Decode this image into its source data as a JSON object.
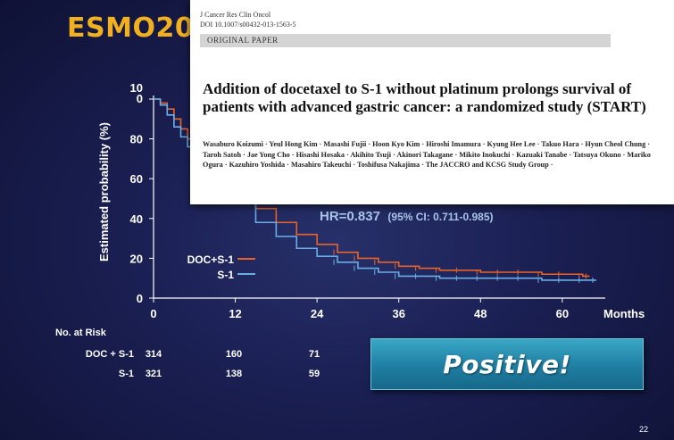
{
  "slide": {
    "title": "ESMO20",
    "page_number": "22",
    "positive_label": "Positive!"
  },
  "paper": {
    "journal": "J Cancer Res Clin Oncol",
    "doi": "DOI 10.1007/s00432-013-1563-5",
    "type": "ORIGINAL PAPER",
    "title": "Addition of docetaxel to S-1 without platinum prolongs survival of patients with advanced gastric cancer: a randomized study (START)",
    "authors": "Wasaburo Koizumi · Yeul Hong Kim · Masashi Fujii · Hoon Kyo Kim · Hiroshi Imamura · Kyung Hee Lee · Takuo Hara · Hyun Cheol Chung · Taroh Satoh · Jae Yong Cho · Hisashi Hosaka · Akihito Tsuji · Akinori Takagane · Mikito Inokuchi · Kazuaki Tanabe · Tatsuya Okuno · Mariko Ogura · Kazuhiro Yoshida · Masahiro Takeuchi · Toshifusa Nakajima · The JACCRO and KCSG Study Group ·"
  },
  "colors": {
    "doc_s1": "#e8632a",
    "s1": "#6aaee6",
    "title": "#f0b020",
    "hr": "#a9c6e8"
  },
  "chart_data": {
    "type": "line",
    "subtype": "kaplan-meier",
    "ylabel": "Estimated probability (%)",
    "xlabel": "Months",
    "y_ticks": [
      "0",
      "20",
      "40",
      "60",
      "80",
      "10\n0"
    ],
    "y_tick_values": [
      0,
      20,
      40,
      60,
      80,
      100
    ],
    "x_ticks": [
      "0",
      "12",
      "24",
      "36",
      "48",
      "60"
    ],
    "x_tick_values": [
      0,
      12,
      24,
      36,
      48,
      60
    ],
    "xlim": [
      0,
      65
    ],
    "ylim": [
      0,
      100
    ],
    "annotation": "HR=0.837",
    "annotation_ci": "(95% CI: 0.711-0.985)",
    "legend_position": "bottom-left",
    "series": [
      {
        "name": "DOC+S-1",
        "color": "#e8632a",
        "x": [
          0,
          1,
          2,
          3,
          4,
          5,
          6,
          8,
          10,
          12,
          15,
          18,
          21,
          24,
          27,
          30,
          33,
          36,
          39,
          42,
          45,
          48,
          51,
          54,
          57,
          60,
          63,
          64
        ],
        "y": [
          100,
          98,
          95,
          90,
          85,
          80,
          77,
          70,
          62,
          55,
          45,
          38,
          32,
          27,
          23,
          20,
          18,
          16,
          15,
          14,
          14,
          13,
          13,
          13,
          12,
          12,
          11,
          11
        ]
      },
      {
        "name": "S-1",
        "color": "#6aaee6",
        "x": [
          0,
          1,
          2,
          3,
          4,
          5,
          6,
          8,
          10,
          12,
          15,
          18,
          21,
          24,
          27,
          30,
          33,
          36,
          39,
          42,
          45,
          48,
          51,
          54,
          57,
          60,
          63,
          65
        ],
        "y": [
          100,
          97,
          92,
          86,
          81,
          76,
          72,
          64,
          56,
          48,
          38,
          31,
          25,
          21,
          18,
          15,
          13,
          11,
          11,
          10,
          10,
          10,
          10,
          10,
          9,
          9,
          9,
          9
        ]
      }
    ],
    "risk_table": {
      "header": "No. at Risk",
      "rows": [
        {
          "label": "DOC + S-1",
          "values": [
            "314",
            "160",
            "71"
          ]
        },
        {
          "label": "S-1",
          "values": [
            "321",
            "138",
            "59"
          ]
        }
      ]
    }
  }
}
